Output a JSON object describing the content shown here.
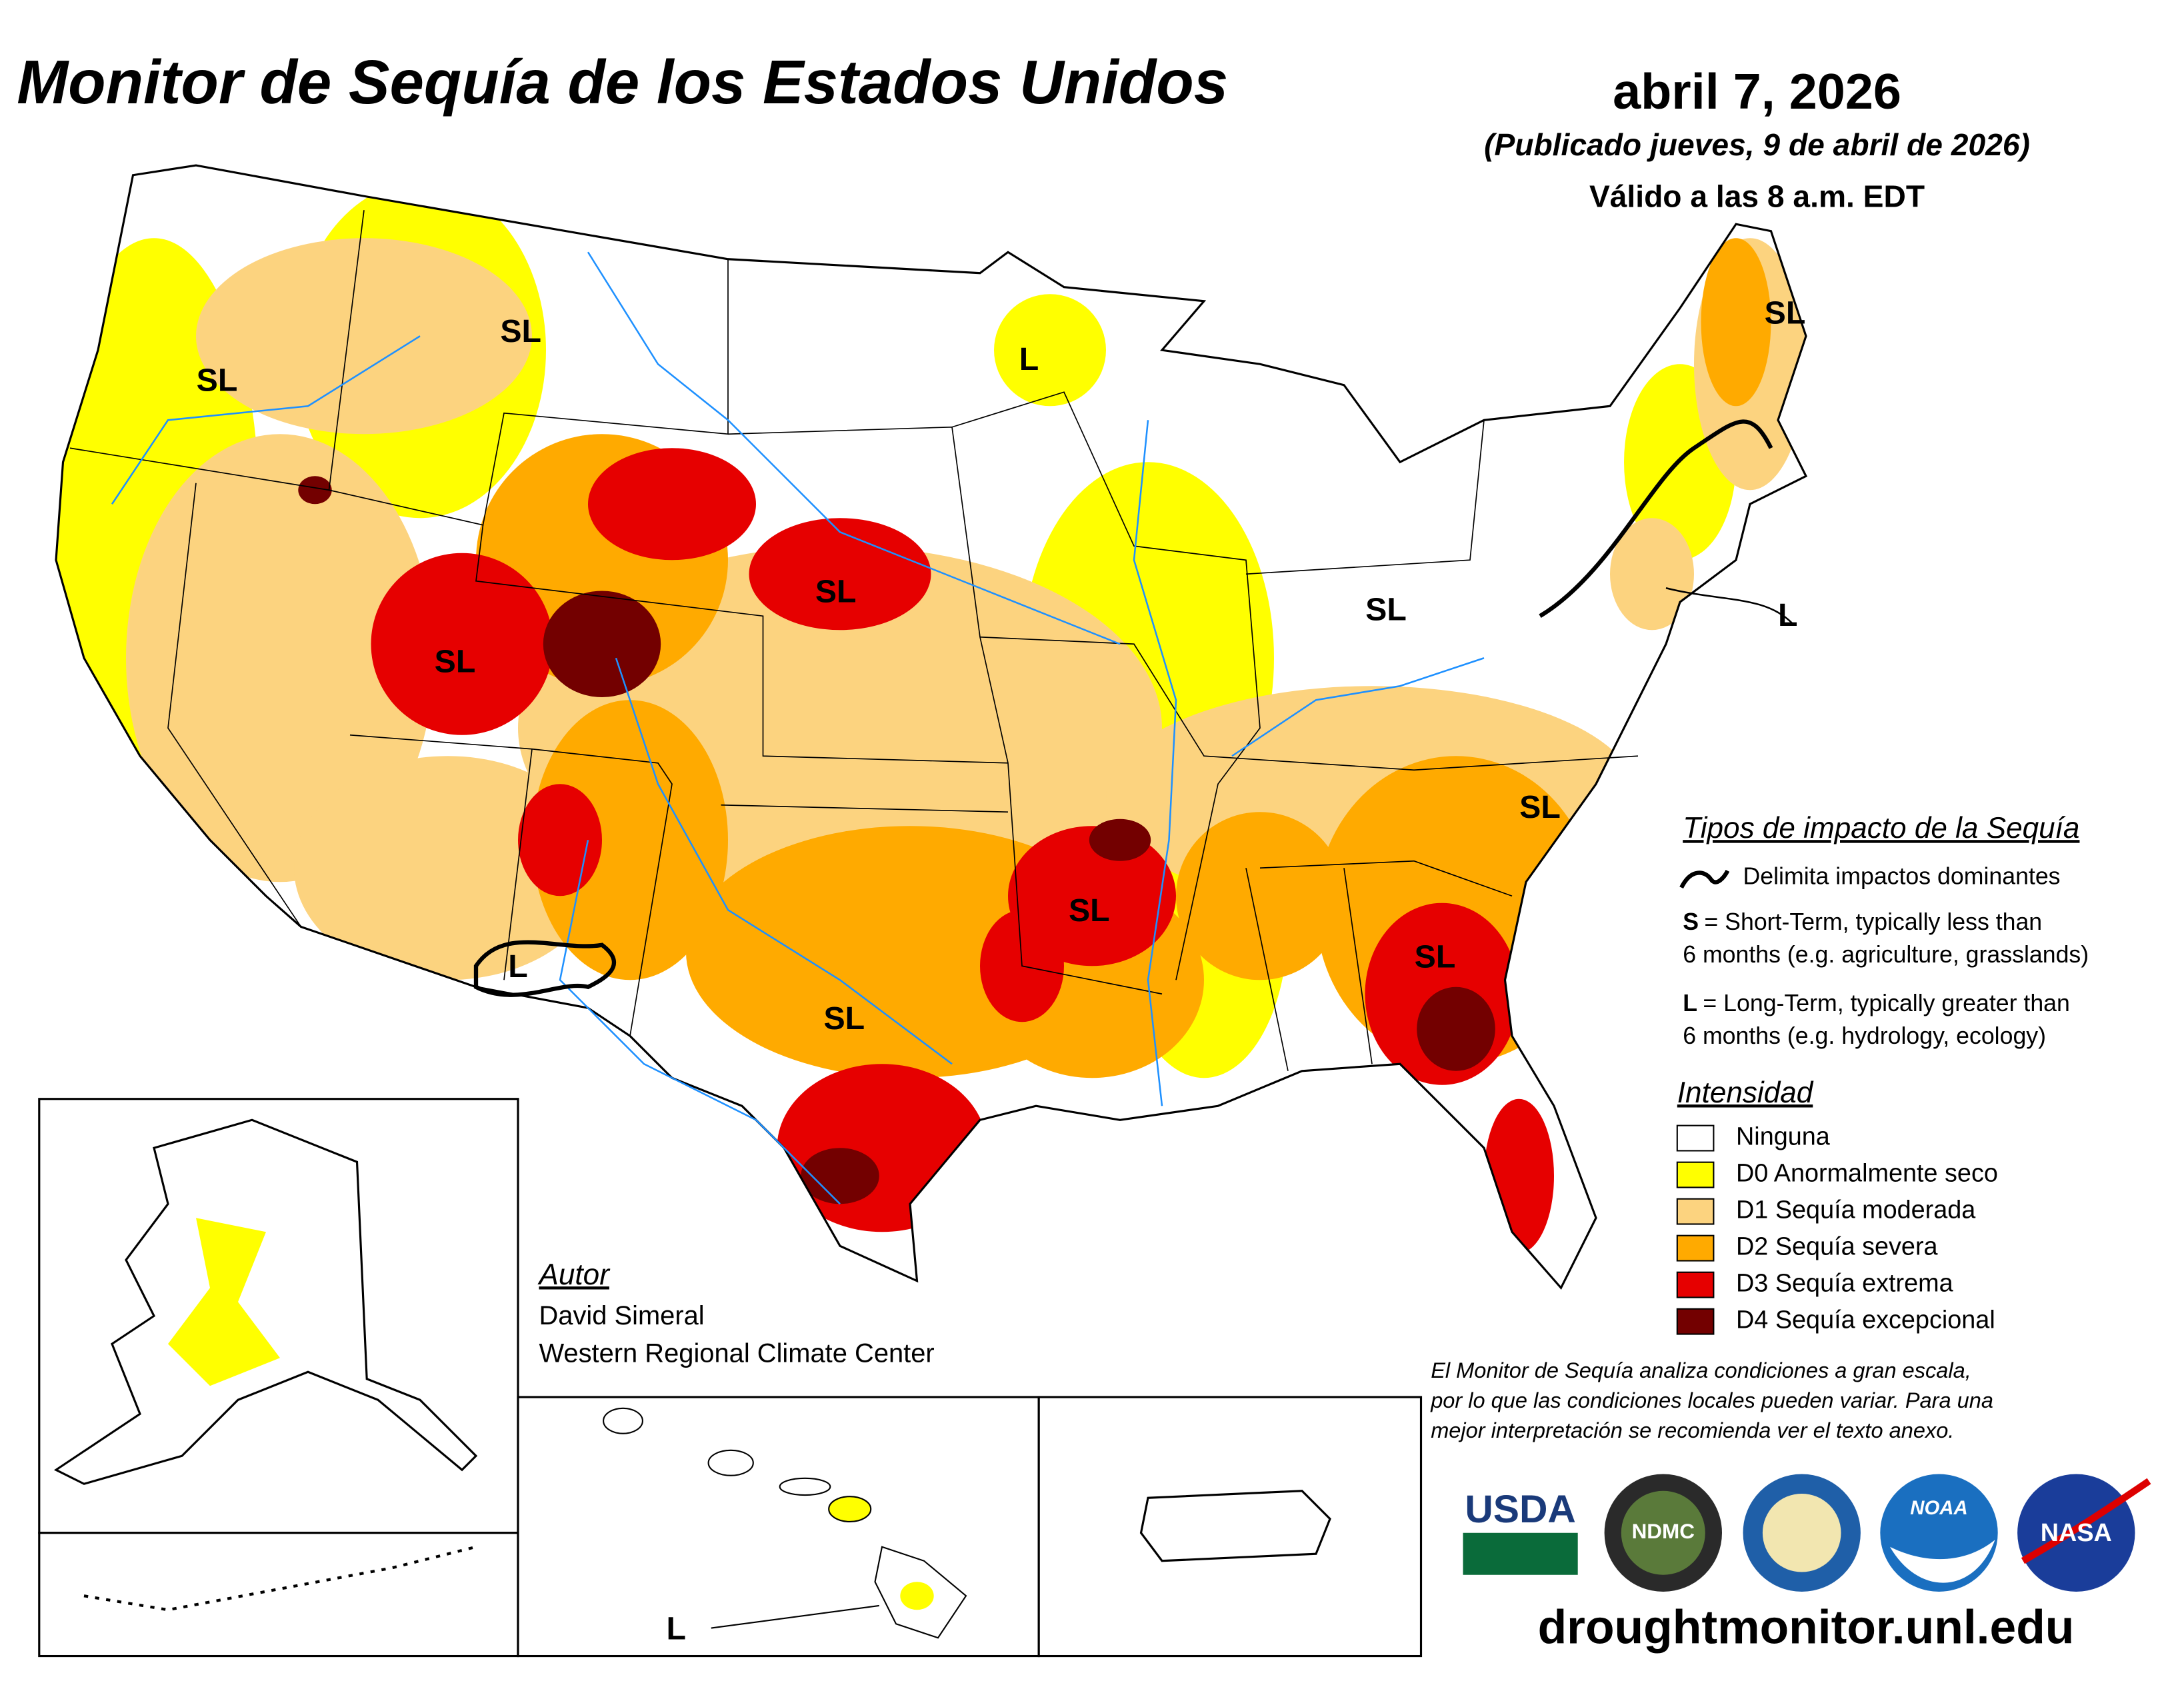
{
  "header": {
    "title": "Monitor de Sequía de los Estados Unidos",
    "date": "abril 7, 2026",
    "published": "(Publicado jueves, 9 de abril de 2026)",
    "valid": "Válido a las 8 a.m. EDT"
  },
  "map_labels": [
    "SL",
    "SL",
    "SL",
    "L",
    "SL",
    "SL",
    "SL",
    "SL",
    "SL",
    "SL",
    "SL",
    "L",
    "L",
    "L"
  ],
  "impact_legend": {
    "title": "Tipos de impacto de la Sequía",
    "line_text": "Delimita impactos dominantes",
    "items": [
      {
        "key": "S",
        "line1": "= Short-Term, typically less than",
        "line2": "6 months (e.g. agriculture, grasslands)"
      },
      {
        "key": "L",
        "line1": "= Long-Term, typically greater than",
        "line2": "6 months (e.g. hydrology, ecology)"
      }
    ]
  },
  "intensity_legend": {
    "title": "Intensidad",
    "items": [
      {
        "label": "Ninguna",
        "color": "#ffffff"
      },
      {
        "label": "D0 Anormalmente seco",
        "color": "#ffff00"
      },
      {
        "label": "D1 Sequía moderada",
        "color": "#fcd37f"
      },
      {
        "label": "D2 Sequía severa",
        "color": "#ffaa00"
      },
      {
        "label": "D3 Sequía extrema",
        "color": "#e60000"
      },
      {
        "label": "D4 Sequía excepcional",
        "color": "#730000"
      }
    ]
  },
  "author": {
    "heading": "Autor",
    "name": "David Simeral",
    "org": "Western Regional Climate Center"
  },
  "disclaimer": [
    "El Monitor de Sequía analiza condiciones a gran escala,",
    "por lo que las condiciones locales pueden variar. Para una",
    "mejor interpretación se recomienda ver el texto anexo."
  ],
  "logos": [
    "USDA",
    "NDMC",
    "NOAA",
    "NASA"
  ],
  "url": "droughtmonitor.unl.edu"
}
